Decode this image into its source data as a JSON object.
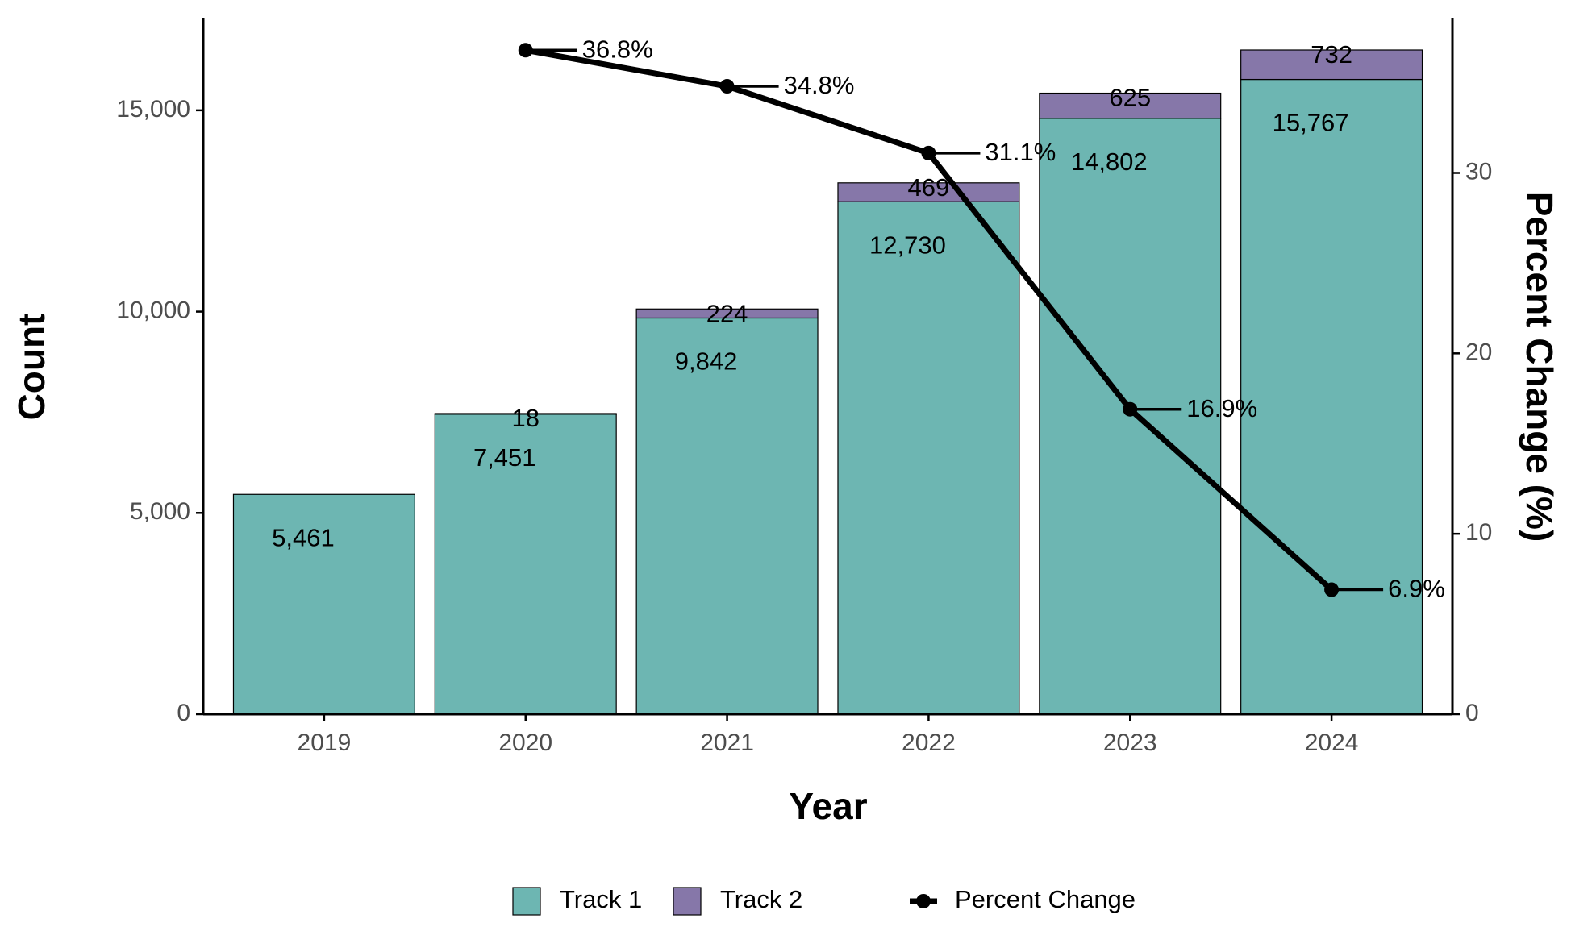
{
  "chart_data": {
    "type": "bar",
    "stacked": true,
    "x_label": "Year",
    "y_label": "Count",
    "y2_label": "Percent Change (%)",
    "categories": [
      "2019",
      "2020",
      "2021",
      "2022",
      "2023",
      "2024"
    ],
    "series": [
      {
        "name": "Track 1",
        "type": "bar",
        "color": "#6db6b2",
        "values": [
          5461,
          7451,
          9842,
          12730,
          14802,
          15767
        ],
        "value_labels": [
          "5,461",
          "7,451",
          "9,842",
          "12,730",
          "14,802",
          "15,767"
        ]
      },
      {
        "name": "Track 2",
        "type": "bar",
        "color": "#8677a9",
        "values": [
          null,
          18,
          224,
          469,
          625,
          732
        ]
      },
      {
        "name": "Percent Change",
        "type": "line",
        "axis": "y2",
        "color": "#000000",
        "values": [
          null,
          36.8,
          34.8,
          31.1,
          16.9,
          6.9
        ],
        "value_labels": [
          null,
          "36.8%",
          "34.8%",
          "31.1%",
          "16.9%",
          "6.9%"
        ]
      }
    ],
    "ylim": [
      0,
      17300
    ],
    "yticks": [
      0,
      {
        "value": 5000,
        "label": "5,000"
      },
      {
        "value": 10000,
        "label": "10,000"
      },
      {
        "value": 15000,
        "label": "15,000"
      }
    ],
    "y2lim": [
      0,
      38.6
    ],
    "y2ticks": [
      0,
      10,
      20,
      30
    ],
    "legend": "bottom",
    "grid": false
  }
}
